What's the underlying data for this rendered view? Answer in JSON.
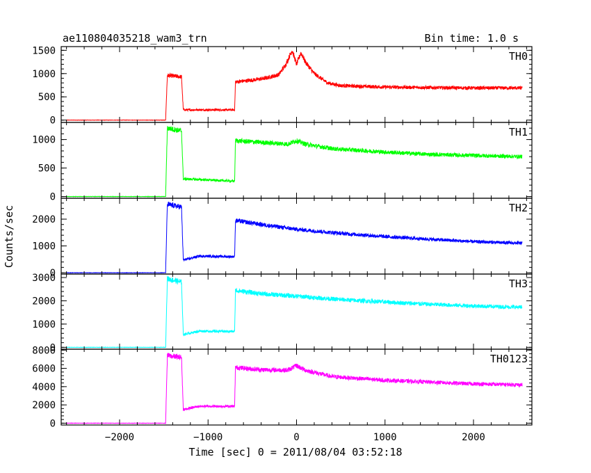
{
  "header": {
    "title": "ae110804035218_wam3_trn",
    "bin_time": "Bin time: 1.0 s"
  },
  "chart_data": {
    "type": "line",
    "title": "ae110804035218_wam3_trn",
    "xlabel": "Time [sec] 0 = 2011/08/04 03:52:18",
    "ylabel": "Counts/sec",
    "xlim": [
      -2660,
      2660
    ],
    "x_ticks": [
      -2000,
      -1000,
      0,
      1000,
      2000
    ],
    "x_tick_labels": [
      "−2000",
      "−1000",
      "0",
      "1000",
      "2000"
    ],
    "grid": false,
    "panels": [
      {
        "name": "TH0",
        "color": "#ff0000",
        "ylim": [
          -50,
          1580
        ],
        "y_ticks": [
          0,
          500,
          1000,
          1500
        ],
        "y_tick_labels": [
          "0",
          "500",
          "1000",
          "1500"
        ],
        "points": [
          [
            -2600,
            0
          ],
          [
            -1480,
            0
          ],
          [
            -1460,
            960
          ],
          [
            -1300,
            930
          ],
          [
            -1280,
            220
          ],
          [
            -700,
            220
          ],
          [
            -690,
            820
          ],
          [
            -500,
            860
          ],
          [
            -350,
            900
          ],
          [
            -200,
            980
          ],
          [
            -120,
            1200
          ],
          [
            -50,
            1500
          ],
          [
            0,
            1200
          ],
          [
            50,
            1450
          ],
          [
            100,
            1250
          ],
          [
            200,
            1000
          ],
          [
            350,
            800
          ],
          [
            500,
            740
          ],
          [
            1000,
            710
          ],
          [
            1500,
            700
          ],
          [
            2000,
            690
          ],
          [
            2550,
            690
          ]
        ]
      },
      {
        "name": "TH1",
        "color": "#00ff00",
        "ylim": [
          -30,
          1300
        ],
        "y_ticks": [
          0,
          500,
          1000
        ],
        "y_tick_labels": [
          "0",
          "500",
          "1000"
        ],
        "points": [
          [
            -2600,
            0
          ],
          [
            -1480,
            0
          ],
          [
            -1460,
            1200
          ],
          [
            -1300,
            1150
          ],
          [
            -1280,
            310
          ],
          [
            -700,
            270
          ],
          [
            -690,
            980
          ],
          [
            -400,
            950
          ],
          [
            -100,
            920
          ],
          [
            0,
            980
          ],
          [
            100,
            920
          ],
          [
            400,
            840
          ],
          [
            1000,
            780
          ],
          [
            1500,
            740
          ],
          [
            2000,
            720
          ],
          [
            2550,
            700
          ]
        ]
      },
      {
        "name": "TH2",
        "color": "#0000ff",
        "ylim": [
          -50,
          2780
        ],
        "y_ticks": [
          0,
          1000,
          2000
        ],
        "y_tick_labels": [
          "0",
          "1000",
          "2000"
        ],
        "points": [
          [
            -2600,
            0
          ],
          [
            -1480,
            0
          ],
          [
            -1460,
            2550
          ],
          [
            -1300,
            2450
          ],
          [
            -1280,
            470
          ],
          [
            -1100,
            620
          ],
          [
            -700,
            600
          ],
          [
            -690,
            1950
          ],
          [
            -400,
            1800
          ],
          [
            0,
            1620
          ],
          [
            500,
            1470
          ],
          [
            1000,
            1350
          ],
          [
            1500,
            1250
          ],
          [
            2000,
            1160
          ],
          [
            2550,
            1100
          ]
        ]
      },
      {
        "name": "TH3",
        "color": "#00ffff",
        "ylim": [
          -80,
          3150
        ],
        "y_ticks": [
          0,
          1000,
          2000,
          3000
        ],
        "y_tick_labels": [
          "0",
          "1000",
          "2000",
          "3000"
        ],
        "points": [
          [
            -2600,
            0
          ],
          [
            -1480,
            0
          ],
          [
            -1460,
            2950
          ],
          [
            -1300,
            2800
          ],
          [
            -1280,
            550
          ],
          [
            -1100,
            700
          ],
          [
            -700,
            680
          ],
          [
            -690,
            2450
          ],
          [
            -400,
            2300
          ],
          [
            0,
            2200
          ],
          [
            500,
            2050
          ],
          [
            1000,
            1950
          ],
          [
            1500,
            1850
          ],
          [
            2000,
            1780
          ],
          [
            2550,
            1720
          ]
        ]
      },
      {
        "name": "TH0123",
        "color": "#ff00ff",
        "ylim": [
          -200,
          8100
        ],
        "y_ticks": [
          0,
          2000,
          4000,
          6000,
          8000
        ],
        "y_tick_labels": [
          "0",
          "2000",
          "4000",
          "6000",
          "8000"
        ],
        "points": [
          [
            -2600,
            0
          ],
          [
            -1480,
            0
          ],
          [
            -1460,
            7400
          ],
          [
            -1300,
            7200
          ],
          [
            -1280,
            1500
          ],
          [
            -1100,
            1850
          ],
          [
            -700,
            1850
          ],
          [
            -690,
            6100
          ],
          [
            -400,
            5850
          ],
          [
            -100,
            5800
          ],
          [
            0,
            6300
          ],
          [
            100,
            5800
          ],
          [
            400,
            5100
          ],
          [
            1000,
            4700
          ],
          [
            1500,
            4500
          ],
          [
            2000,
            4300
          ],
          [
            2550,
            4200
          ]
        ]
      }
    ]
  }
}
